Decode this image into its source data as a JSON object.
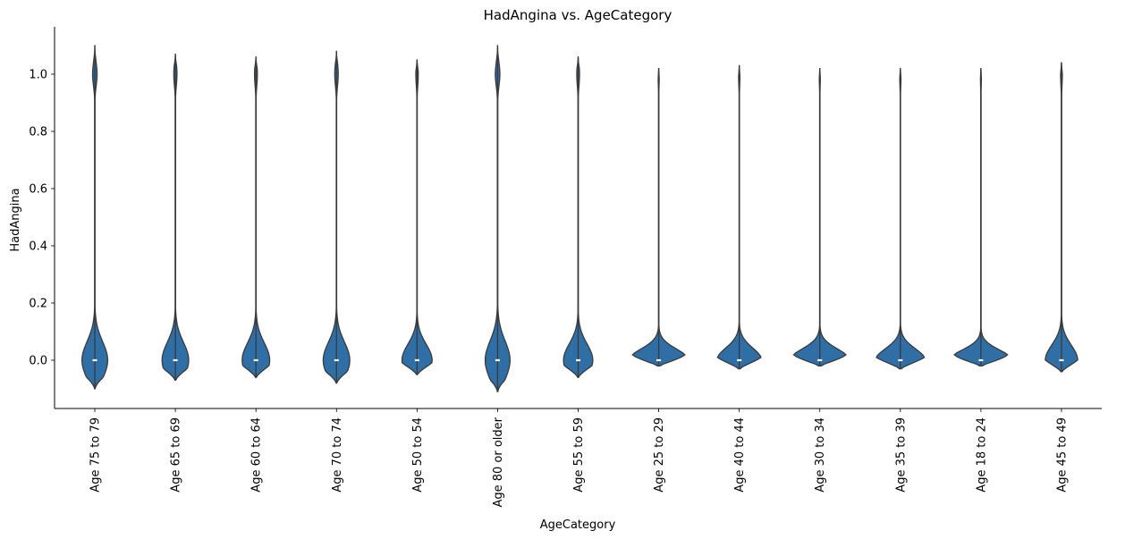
{
  "chart_data": {
    "type": "violin",
    "title": "HadAngina vs. AgeCategory",
    "xlabel": "AgeCategory",
    "ylabel": "HadAngina",
    "ylim": [
      -0.16,
      1.16
    ],
    "yticks": [
      "0.0",
      "0.2",
      "0.4",
      "0.6",
      "0.8",
      "1.0"
    ],
    "ytick_values": [
      0.0,
      0.2,
      0.4,
      0.6,
      0.8,
      1.0
    ],
    "categories": [
      "Age 75 to 79",
      "Age 65 to 69",
      "Age 60 to 64",
      "Age 70 to 74",
      "Age 50 to 54",
      "Age 80 or older",
      "Age 55 to 59",
      "Age 25 to 29",
      "Age 40 to 44",
      "Age 30 to 34",
      "Age 35 to 39",
      "Age 18 to 24",
      "Age 45 to 49"
    ],
    "violins": [
      {
        "min": -0.1,
        "max": 1.1,
        "median": 0.0,
        "width0": 0.4,
        "width1": 0.07
      },
      {
        "min": -0.07,
        "max": 1.07,
        "median": 0.0,
        "width0": 0.42,
        "width1": 0.05
      },
      {
        "min": -0.06,
        "max": 1.06,
        "median": 0.0,
        "width0": 0.44,
        "width1": 0.045
      },
      {
        "min": -0.08,
        "max": 1.08,
        "median": 0.0,
        "width0": 0.42,
        "width1": 0.055
      },
      {
        "min": -0.05,
        "max": 1.05,
        "median": 0.0,
        "width0": 0.5,
        "width1": 0.04
      },
      {
        "min": -0.11,
        "max": 1.1,
        "median": 0.0,
        "width0": 0.38,
        "width1": 0.07
      },
      {
        "min": -0.06,
        "max": 1.06,
        "median": 0.0,
        "width0": 0.48,
        "width1": 0.045
      },
      {
        "min": -0.02,
        "max": 1.02,
        "median": 0.0,
        "width0": 1.0,
        "width1": 0.02
      },
      {
        "min": -0.03,
        "max": 1.03,
        "median": 0.0,
        "width0": 0.8,
        "width1": 0.025
      },
      {
        "min": -0.02,
        "max": 1.02,
        "median": 0.0,
        "width0": 1.0,
        "width1": 0.02
      },
      {
        "min": -0.03,
        "max": 1.02,
        "median": 0.0,
        "width0": 0.9,
        "width1": 0.025
      },
      {
        "min": -0.02,
        "max": 1.02,
        "median": 0.0,
        "width0": 1.2,
        "width1": 0.02
      },
      {
        "min": -0.04,
        "max": 1.04,
        "median": 0.0,
        "width0": 0.55,
        "width1": 0.03
      }
    ],
    "violin_color": "#2f6fa6",
    "edge_color": "#3a3a3a",
    "grid": false,
    "legend": "none"
  }
}
